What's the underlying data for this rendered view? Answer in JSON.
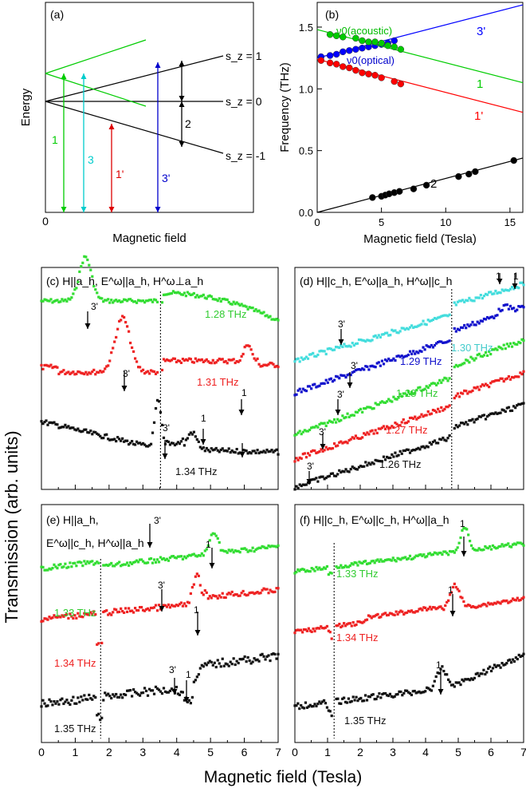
{
  "chart_data": [
    {
      "panel": "(a)",
      "type": "line",
      "ylabel": "Energy",
      "xlabel": "Magnetic field",
      "x_tick": "0",
      "level_labels": [
        "s_z = 1",
        "s_z = 0",
        "s_z = -1"
      ],
      "transition_labels": [
        "1",
        "3",
        "1'",
        "3'",
        "2"
      ],
      "colors": {
        "1": "#00cc00",
        "3": "#00cccc",
        "1'": "#dd0000",
        "3'": "#0000cc",
        "2": "#000000"
      }
    },
    {
      "panel": "(b)",
      "type": "scatter",
      "xlabel": "Magnetic field (Tesla)",
      "ylabel": "Frequency (THz)",
      "xlim": [
        0,
        16
      ],
      "ylim": [
        0,
        1.7
      ],
      "xticks": [
        "0",
        "5",
        "10",
        "15"
      ],
      "yticks": [
        "0.0",
        "0.5",
        "1.0",
        "1.5"
      ],
      "annotations": [
        "ν0(acoustic)",
        "ν0(optical)"
      ],
      "series": [
        {
          "name": "3'",
          "color": "#0000ff",
          "fit": [
            [
              0,
              1.25
            ],
            [
              16,
              1.68
            ]
          ],
          "points": [
            [
              0.3,
              1.26
            ],
            [
              1,
              1.27
            ],
            [
              1.5,
              1.28
            ],
            [
              2,
              1.3
            ],
            [
              2.5,
              1.31
            ],
            [
              3,
              1.32
            ],
            [
              3.5,
              1.33
            ],
            [
              4,
              1.34
            ],
            [
              4.5,
              1.35
            ],
            [
              5,
              1.36
            ],
            [
              5.5,
              1.37
            ],
            [
              6,
              1.39
            ]
          ]
        },
        {
          "name": "1",
          "color": "#00cc00",
          "fit": [
            [
              0,
              1.48
            ],
            [
              16,
              1.05
            ]
          ],
          "points": [
            [
              1,
              1.44
            ],
            [
              1.5,
              1.43
            ],
            [
              2,
              1.42
            ],
            [
              3,
              1.41
            ],
            [
              3.5,
              1.39
            ],
            [
              4,
              1.38
            ],
            [
              4.5,
              1.38
            ],
            [
              5,
              1.37
            ],
            [
              5.5,
              1.35
            ],
            [
              6,
              1.34
            ],
            [
              6.5,
              1.32
            ]
          ]
        },
        {
          "name": "1'",
          "color": "#ff0000",
          "fit": [
            [
              0,
              1.24
            ],
            [
              16,
              0.81
            ]
          ],
          "points": [
            [
              0.3,
              1.23
            ],
            [
              1,
              1.21
            ],
            [
              1.5,
              1.2
            ],
            [
              2,
              1.18
            ],
            [
              2.5,
              1.17
            ],
            [
              3,
              1.15
            ],
            [
              3.5,
              1.13
            ],
            [
              4,
              1.12
            ],
            [
              4.5,
              1.11
            ],
            [
              5,
              1.09
            ],
            [
              6,
              1.06
            ],
            [
              6.5,
              1.04
            ]
          ]
        },
        {
          "name": "2",
          "color": "#000000",
          "fit": [
            [
              0,
              0.0
            ],
            [
              16,
              0.44
            ]
          ],
          "points": [
            [
              4.3,
              0.12
            ],
            [
              5,
              0.13
            ],
            [
              5.3,
              0.14
            ],
            [
              5.6,
              0.15
            ],
            [
              6,
              0.16
            ],
            [
              6.4,
              0.17
            ],
            [
              7.5,
              0.19
            ],
            [
              8.5,
              0.22
            ],
            [
              11,
              0.29
            ],
            [
              11.8,
              0.31
            ],
            [
              12.3,
              0.33
            ],
            [
              15.3,
              0.42
            ]
          ]
        }
      ]
    },
    {
      "panel": "(c)",
      "type": "scatter",
      "title": "(c) H||a_h, E^ω||a_h, H^ω⊥a_h",
      "xlim": [
        0,
        7
      ],
      "series": [
        {
          "name": "1.28 THz",
          "color": "#33dd33",
          "base": 0.88,
          "dips": [
            [
              1.3,
              0.32,
              0.18
            ],
            [
              3.6,
              0.05,
              0.1
            ]
          ],
          "slope": 0.0,
          "curve": -0.01
        },
        {
          "name": "1.31 THz",
          "color": "#ee2222",
          "base": 0.64,
          "dips": [
            [
              2.4,
              0.42,
              0.22
            ],
            [
              6.1,
              0.18,
              0.12
            ]
          ],
          "slope": 0.0,
          "curve": 0.0
        },
        {
          "name": "1.34 THz",
          "color": "#111111",
          "base": 0.39,
          "dips": [
            [
              3.5,
              0.35,
              0.1
            ],
            [
              4.4,
              0.15,
              0.15
            ]
          ],
          "slope": 0.0,
          "curve": 0.0
        }
      ],
      "markers": [
        "3'",
        "3'",
        "1",
        "3'",
        "1"
      ]
    },
    {
      "panel": "(d)",
      "type": "scatter",
      "title": "(d) H||c_h, E^ω||a_h, H^ω||c_h",
      "xlim": [
        0,
        7
      ],
      "series": [
        {
          "name": "1.30 THz",
          "color": "#33dddd"
        },
        {
          "name": "1.29 THz",
          "color": "#1111cc"
        },
        {
          "name": "1.28 THz",
          "color": "#33dd33"
        },
        {
          "name": "1.27 THz",
          "color": "#ee2222"
        },
        {
          "name": "1.26 THz",
          "color": "#111111"
        }
      ],
      "markers": [
        "1",
        "1",
        "3'",
        "3'",
        "3'",
        "3'",
        "3'"
      ]
    },
    {
      "panel": "(e)",
      "type": "scatter",
      "title": "(e) H||a_h, E^ω||c_h, H^ω||a_h",
      "xlim": [
        0,
        7
      ],
      "xticks": [
        "0",
        "1",
        "2",
        "3",
        "4",
        "5",
        "6",
        "7"
      ],
      "series": [
        {
          "name": "1.33 THz",
          "color": "#33dd33"
        },
        {
          "name": "1.34 THz",
          "color": "#ee2222"
        },
        {
          "name": "1.35 THz",
          "color": "#111111"
        }
      ],
      "markers": [
        "3'",
        "1",
        "3'",
        "1",
        "3'",
        "1"
      ]
    },
    {
      "panel": "(f)",
      "type": "scatter",
      "title": "(f) H||c_h, E^ω||c_h, H^ω||a_h",
      "xlim": [
        0,
        7
      ],
      "xticks": [
        "0",
        "1",
        "2",
        "3",
        "4",
        "5",
        "6",
        "7"
      ],
      "series": [
        {
          "name": "1.33 THz",
          "color": "#33dd33"
        },
        {
          "name": "1.34 THz",
          "color": "#ee2222"
        },
        {
          "name": "1.35 THz",
          "color": "#111111"
        }
      ],
      "markers": [
        "1",
        "1",
        "1"
      ]
    }
  ],
  "shared": {
    "ylabel_transmission": "Transmission (arb. units)",
    "xlabel_bottom": "Magnetic field (Tesla)"
  }
}
